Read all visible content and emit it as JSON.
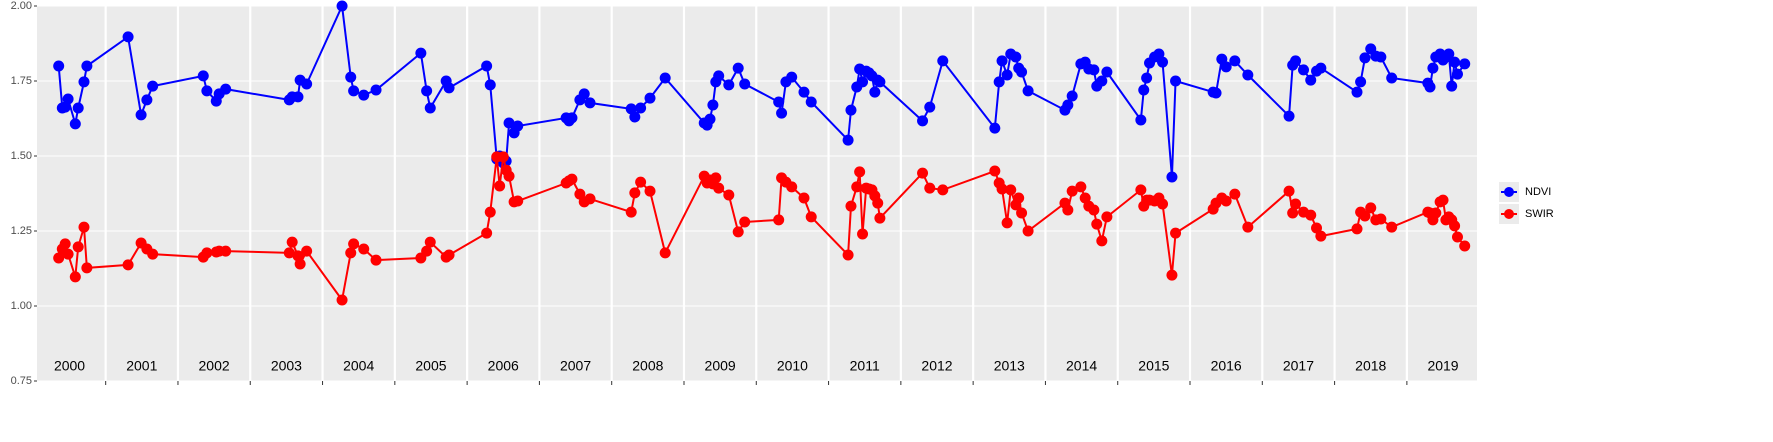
{
  "chart_data": {
    "type": "line",
    "x": [
      2000.35,
      2000.4,
      2000.44,
      2000.48,
      2000.58,
      2000.62,
      2000.7,
      2000.74,
      2001.31,
      2001.49,
      2001.57,
      2001.65,
      2002.35,
      2002.4,
      2002.53,
      2002.57,
      2002.66,
      2003.54,
      2003.58,
      2003.66,
      2003.69,
      2003.78,
      2004.27,
      2004.39,
      2004.43,
      2004.57,
      2004.74,
      2005.36,
      2005.44,
      2005.49,
      2005.71,
      2005.75,
      2006.27,
      2006.32,
      2006.41,
      2006.45,
      2006.5,
      2006.54,
      2006.58,
      2006.65,
      2006.7,
      2007.37,
      2007.41,
      2007.45,
      2007.56,
      2007.62,
      2007.7,
      2008.27,
      2008.32,
      2008.4,
      2008.53,
      2008.74,
      2009.28,
      2009.32,
      2009.36,
      2009.4,
      2009.44,
      2009.48,
      2009.62,
      2009.75,
      2009.84,
      2010.31,
      2010.35,
      2010.41,
      2010.49,
      2010.66,
      2010.76,
      2011.27,
      2011.31,
      2011.39,
      2011.43,
      2011.47,
      2011.52,
      2011.56,
      2011.6,
      2011.64,
      2011.68,
      2011.71,
      2012.3,
      2012.4,
      2012.58,
      2013.3,
      2013.36,
      2013.4,
      2013.47,
      2013.52,
      2013.59,
      2013.63,
      2013.67,
      2013.76,
      2014.27,
      2014.31,
      2014.37,
      2014.49,
      2014.55,
      2014.6,
      2014.67,
      2014.71,
      2014.78,
      2014.85,
      2015.32,
      2015.36,
      2015.4,
      2015.44,
      2015.51,
      2015.57,
      2015.62,
      2015.75,
      2015.8,
      2016.32,
      2016.36,
      2016.44,
      2016.5,
      2016.62,
      2016.8,
      2017.37,
      2017.42,
      2017.46,
      2017.57,
      2017.67,
      2017.75,
      2017.81,
      2018.31,
      2018.36,
      2018.42,
      2018.5,
      2018.57,
      2018.64,
      2018.79,
      2019.29,
      2019.32,
      2019.36,
      2019.4,
      2019.46,
      2019.5,
      2019.54,
      2019.58,
      2019.62,
      2019.66,
      2019.7,
      2019.8
    ],
    "series": [
      {
        "name": "NDVI",
        "color": "#0000ff",
        "values": [
          1.8,
          1.66,
          1.663,
          1.69,
          1.607,
          1.66,
          1.747,
          1.8,
          1.897,
          1.637,
          1.687,
          1.733,
          1.767,
          1.717,
          1.683,
          1.707,
          1.723,
          1.687,
          1.697,
          1.697,
          1.753,
          1.74,
          2.0,
          1.763,
          1.717,
          1.703,
          1.72,
          1.843,
          1.717,
          1.66,
          1.75,
          1.727,
          1.8,
          1.737,
          1.49,
          1.5,
          1.477,
          1.483,
          1.61,
          1.577,
          1.6,
          1.627,
          1.617,
          1.627,
          1.687,
          1.707,
          1.677,
          1.657,
          1.63,
          1.66,
          1.693,
          1.76,
          1.61,
          1.603,
          1.623,
          1.67,
          1.747,
          1.767,
          1.737,
          1.793,
          1.74,
          1.68,
          1.643,
          1.747,
          1.763,
          1.713,
          1.68,
          1.553,
          1.653,
          1.73,
          1.79,
          1.747,
          1.783,
          1.777,
          1.767,
          1.713,
          1.753,
          1.747,
          1.617,
          1.663,
          1.817,
          1.593,
          1.747,
          1.817,
          1.77,
          1.84,
          1.83,
          1.793,
          1.78,
          1.717,
          1.653,
          1.67,
          1.7,
          1.807,
          1.813,
          1.79,
          1.787,
          1.733,
          1.75,
          1.78,
          1.62,
          1.72,
          1.76,
          1.81,
          1.83,
          1.84,
          1.813,
          1.43,
          1.75,
          1.713,
          1.71,
          1.823,
          1.797,
          1.817,
          1.77,
          1.633,
          1.803,
          1.817,
          1.787,
          1.753,
          1.783,
          1.793,
          1.713,
          1.747,
          1.827,
          1.857,
          1.833,
          1.83,
          1.76,
          1.743,
          1.73,
          1.793,
          1.83,
          1.84,
          1.82,
          1.83,
          1.84,
          1.733,
          1.813,
          1.773,
          1.807
        ]
      },
      {
        "name": "SWIR",
        "color": "#ff0000",
        "values": [
          1.16,
          1.19,
          1.207,
          1.173,
          1.097,
          1.197,
          1.263,
          1.127,
          1.137,
          1.21,
          1.19,
          1.173,
          1.163,
          1.177,
          1.18,
          1.183,
          1.183,
          1.177,
          1.213,
          1.167,
          1.14,
          1.183,
          1.02,
          1.177,
          1.207,
          1.19,
          1.153,
          1.16,
          1.183,
          1.213,
          1.163,
          1.17,
          1.243,
          1.313,
          1.497,
          1.4,
          1.497,
          1.453,
          1.433,
          1.347,
          1.35,
          1.41,
          1.417,
          1.423,
          1.373,
          1.347,
          1.357,
          1.313,
          1.377,
          1.413,
          1.383,
          1.177,
          1.433,
          1.41,
          1.42,
          1.407,
          1.427,
          1.393,
          1.37,
          1.247,
          1.28,
          1.287,
          1.427,
          1.413,
          1.397,
          1.36,
          1.297,
          1.17,
          1.333,
          1.397,
          1.447,
          1.24,
          1.393,
          1.39,
          1.387,
          1.367,
          1.343,
          1.293,
          1.443,
          1.393,
          1.387,
          1.45,
          1.41,
          1.39,
          1.277,
          1.387,
          1.337,
          1.36,
          1.31,
          1.25,
          1.343,
          1.32,
          1.383,
          1.397,
          1.36,
          1.333,
          1.32,
          1.273,
          1.217,
          1.297,
          1.387,
          1.333,
          1.353,
          1.353,
          1.35,
          1.36,
          1.34,
          1.103,
          1.243,
          1.323,
          1.343,
          1.36,
          1.35,
          1.373,
          1.263,
          1.383,
          1.31,
          1.34,
          1.313,
          1.303,
          1.26,
          1.233,
          1.257,
          1.313,
          1.3,
          1.327,
          1.287,
          1.29,
          1.263,
          1.313,
          1.31,
          1.287,
          1.31,
          1.347,
          1.353,
          1.287,
          1.297,
          1.287,
          1.267,
          1.23,
          1.2
        ]
      }
    ],
    "xlim": [
      2000.05,
      2019.97
    ],
    "xticks": [
      2001,
      2002,
      2003,
      2004,
      2005,
      2006,
      2007,
      2008,
      2009,
      2010,
      2011,
      2012,
      2013,
      2014,
      2015,
      2016,
      2017,
      2018,
      2019
    ],
    "ylim": [
      0.75,
      2.0
    ],
    "yticks": [
      {
        "value": 0.75,
        "label": "0.75"
      },
      {
        "value": 1.0,
        "label": "1.00"
      },
      {
        "value": 1.25,
        "label": "1.25"
      },
      {
        "value": 1.5,
        "label": "1.50"
      },
      {
        "value": 1.75,
        "label": "1.75"
      },
      {
        "value": 2.0,
        "label": "2.00"
      }
    ],
    "year_labels": [
      {
        "value": 2000.5,
        "label": "2000"
      },
      {
        "value": 2001.5,
        "label": "2001"
      },
      {
        "value": 2002.5,
        "label": "2002"
      },
      {
        "value": 2003.5,
        "label": "2003"
      },
      {
        "value": 2004.5,
        "label": "2004"
      },
      {
        "value": 2005.5,
        "label": "2005"
      },
      {
        "value": 2006.5,
        "label": "2006"
      },
      {
        "value": 2007.5,
        "label": "2007"
      },
      {
        "value": 2008.5,
        "label": "2008"
      },
      {
        "value": 2009.5,
        "label": "2009"
      },
      {
        "value": 2010.5,
        "label": "2010"
      },
      {
        "value": 2011.5,
        "label": "2011"
      },
      {
        "value": 2012.5,
        "label": "2012"
      },
      {
        "value": 2013.5,
        "label": "2013"
      },
      {
        "value": 2014.5,
        "label": "2014"
      },
      {
        "value": 2015.5,
        "label": "2015"
      },
      {
        "value": 2016.5,
        "label": "2016"
      },
      {
        "value": 2017.5,
        "label": "2017"
      },
      {
        "value": 2018.5,
        "label": "2018"
      },
      {
        "value": 2019.5,
        "label": "2019"
      }
    ],
    "grid": true,
    "legend": "right"
  }
}
